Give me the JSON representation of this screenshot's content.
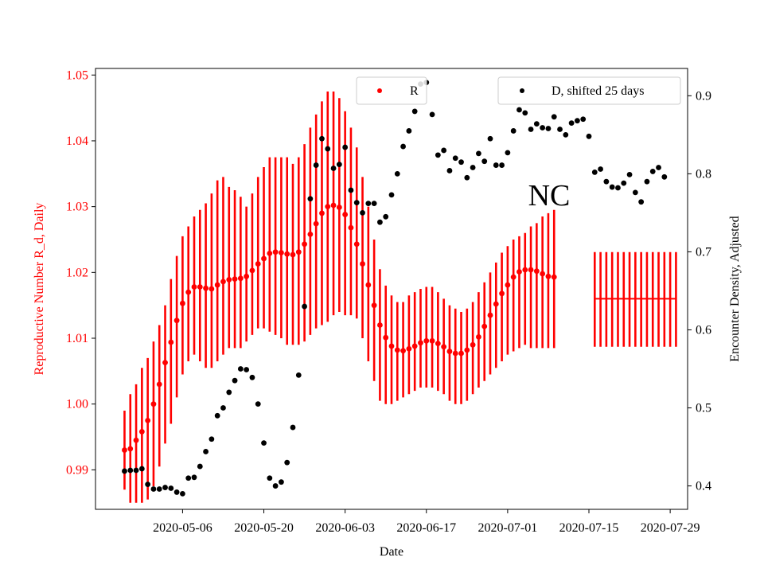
{
  "chart_data": {
    "type": "scatter",
    "annotation": "NC",
    "xlabel": "Date",
    "ylabel_left": "Reproductive Number R_d, Daily",
    "ylabel_right": "Encounter Density, Adjusted",
    "x_range": [
      "2020-04-21",
      "2020-08-01"
    ],
    "ylim_left": [
      0.984,
      1.051
    ],
    "ylim_right": [
      0.37,
      0.935
    ],
    "x_ticks": [
      "2020-05-06",
      "2020-05-20",
      "2020-06-03",
      "2020-06-17",
      "2020-07-01",
      "2020-07-15",
      "2020-07-29"
    ],
    "y_ticks_left": [
      "0.99",
      "1.00",
      "1.01",
      "1.02",
      "1.03",
      "1.04",
      "1.05"
    ],
    "y_ticks_right": [
      "0.4",
      "0.5",
      "0.6",
      "0.7",
      "0.8",
      "0.9"
    ],
    "colors": {
      "R": "#ff0000",
      "D": "#000000",
      "left_axis": "#ff0000",
      "right_axis": "#000000"
    },
    "legend": [
      {
        "label": "R",
        "color": "#ff0000",
        "placement": "upper-center"
      },
      {
        "label": "D, shifted 25 days",
        "color": "#000000",
        "placement": "upper-right"
      }
    ],
    "R_series": {
      "name": "R",
      "start_date": "2020-04-26",
      "values": [
        0.993,
        0.9932,
        0.9945,
        0.9958,
        0.9975,
        1.0,
        1.003,
        1.0063,
        1.0094,
        1.0127,
        1.0153,
        1.017,
        1.0178,
        1.0178,
        1.0176,
        1.0175,
        1.0181,
        1.0186,
        1.0189,
        1.019,
        1.0191,
        1.0194,
        1.0203,
        1.0213,
        1.0221,
        1.0229,
        1.0231,
        1.023,
        1.0228,
        1.0227,
        1.0231,
        1.0243,
        1.0258,
        1.0274,
        1.029,
        1.03,
        1.0302,
        1.0299,
        1.0288,
        1.0268,
        1.0243,
        1.0213,
        1.0181,
        1.015,
        1.012,
        1.0101,
        1.0088,
        1.0082,
        1.0081,
        1.0084,
        1.0088,
        1.0093,
        1.0096,
        1.0096,
        1.0092,
        1.0087,
        1.008,
        1.0077,
        1.0077,
        1.0082,
        1.009,
        1.0102,
        1.0118,
        1.0135,
        1.0152,
        1.0168,
        1.0181,
        1.0193,
        1.0201,
        1.0204,
        1.0204,
        1.0202,
        1.0198,
        1.0194,
        1.0193
      ],
      "lower": [
        0.987,
        0.985,
        0.985,
        0.985,
        0.9855,
        0.9875,
        0.9905,
        0.994,
        0.997,
        1.001,
        1.0045,
        1.0065,
        1.0075,
        1.0065,
        1.0055,
        1.0055,
        1.0065,
        1.0075,
        1.0085,
        1.0085,
        1.0085,
        1.0095,
        1.0105,
        1.0115,
        1.0115,
        1.011,
        1.0105,
        1.01,
        1.009,
        1.009,
        1.009,
        1.0095,
        1.0105,
        1.0115,
        1.012,
        1.0125,
        1.0135,
        1.014,
        1.0135,
        1.0135,
        1.013,
        1.01,
        1.0065,
        1.0035,
        1.0005,
        1.0,
        1.0,
        1.0005,
        1.001,
        1.0015,
        1.002,
        1.0025,
        1.0025,
        1.0025,
        1.002,
        1.0015,
        1.0005,
        1.0,
        1.0,
        1.0005,
        1.0015,
        1.0025,
        1.0035,
        1.0045,
        1.0055,
        1.0065,
        1.0075,
        1.008,
        1.0085,
        1.009,
        1.0085,
        1.0085,
        1.0085,
        1.0085,
        1.0085
      ],
      "upper": [
        0.999,
        1.0015,
        1.003,
        1.0055,
        1.007,
        1.0095,
        1.012,
        1.015,
        1.019,
        1.0225,
        1.0255,
        1.027,
        1.0285,
        1.0295,
        1.0305,
        1.032,
        1.034,
        1.0345,
        1.033,
        1.0325,
        1.0315,
        1.03,
        1.032,
        1.0345,
        1.036,
        1.0375,
        1.0375,
        1.0375,
        1.0375,
        1.0365,
        1.0375,
        1.0395,
        1.042,
        1.044,
        1.046,
        1.0475,
        1.0475,
        1.0465,
        1.0445,
        1.042,
        1.039,
        1.0345,
        1.03,
        1.025,
        1.0205,
        1.018,
        1.0165,
        1.0155,
        1.0155,
        1.0165,
        1.017,
        1.0175,
        1.0178,
        1.0178,
        1.017,
        1.016,
        1.015,
        1.0145,
        1.014,
        1.0145,
        1.0155,
        1.017,
        1.0185,
        1.02,
        1.0215,
        1.023,
        1.024,
        1.025,
        1.0255,
        1.026,
        1.027,
        1.0275,
        1.0285,
        1.029,
        1.0295
      ]
    },
    "R_projection": {
      "start_date": "2020-07-16",
      "end_date": "2020-07-30",
      "value": 1.016,
      "lower": 1.0087,
      "upper": 1.0231
    },
    "D_series": {
      "name": "D, shifted 25 days",
      "start_date": "2020-04-26",
      "values": [
        0.419,
        0.42,
        0.42,
        0.422,
        0.402,
        0.396,
        0.396,
        0.398,
        0.397,
        0.392,
        0.39,
        0.41,
        0.411,
        0.425,
        0.444,
        0.46,
        0.49,
        0.5,
        0.52,
        0.535,
        0.55,
        0.549,
        0.539,
        0.505,
        0.455,
        0.41,
        0.4,
        0.405,
        0.43,
        0.475,
        0.542,
        0.63,
        0.768,
        0.811,
        0.845,
        0.832,
        0.807,
        0.812,
        0.834,
        0.779,
        0.763,
        0.75,
        0.762,
        0.762,
        0.738,
        0.745,
        0.773,
        0.8,
        0.835,
        0.855,
        0.88,
        0.915,
        0.917,
        0.876,
        0.824,
        0.83,
        0.804,
        0.82,
        0.815,
        0.795,
        0.808,
        0.826,
        0.816,
        0.845,
        0.811,
        0.811,
        0.827,
        0.855,
        0.882,
        0.878,
        0.857,
        0.864,
        0.859,
        0.858,
        0.873,
        0.857,
        0.85,
        0.865,
        0.868,
        0.87,
        0.848,
        0.802,
        0.806,
        0.79,
        0.783,
        0.782,
        0.788,
        0.799,
        0.776,
        0.764,
        0.79,
        0.803,
        0.808,
        0.796
      ]
    }
  }
}
